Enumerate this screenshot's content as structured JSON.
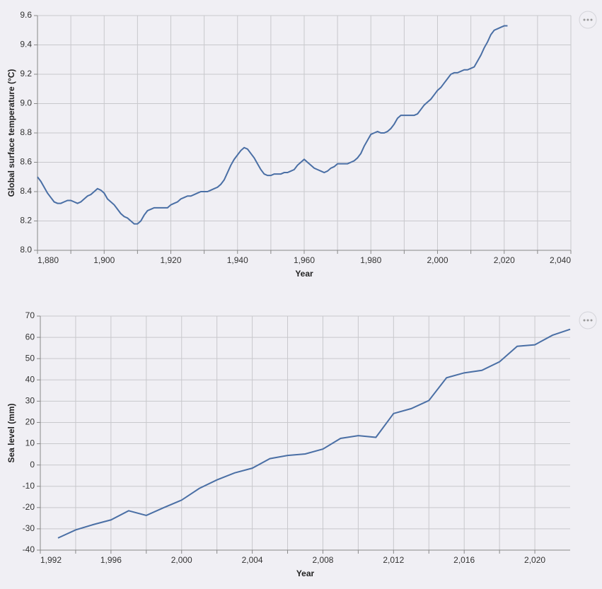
{
  "chart_data": [
    {
      "type": "line",
      "x_label": "Year",
      "y_label": "Global surface temperature (°C)",
      "color": "#4a6fa5",
      "grid": true,
      "xlim": [
        1880,
        2040
      ],
      "xticks": [
        {
          "value": 1880,
          "label": "1,880"
        },
        {
          "value": 1900,
          "label": "1,900"
        },
        {
          "value": 1920,
          "label": "1,920"
        },
        {
          "value": 1940,
          "label": "1,940"
        },
        {
          "value": 1960,
          "label": "1,960"
        },
        {
          "value": 1980,
          "label": "1,980"
        },
        {
          "value": 2000,
          "label": "2,000"
        },
        {
          "value": 2020,
          "label": "2,020"
        },
        {
          "value": 2040,
          "label": "2,040"
        }
      ],
      "ylim": [
        8.0,
        9.6
      ],
      "yticks": [
        {
          "value": 8,
          "label": "8.0"
        },
        8.2,
        8.4,
        8.6,
        8.8,
        {
          "value": 9,
          "label": "9.0"
        },
        9.2,
        9.4,
        9.6
      ],
      "x": [
        1880,
        1881,
        1882,
        1883,
        1884,
        1885,
        1886,
        1887,
        1888,
        1889,
        1890,
        1891,
        1892,
        1893,
        1894,
        1895,
        1896,
        1897,
        1898,
        1899,
        1900,
        1901,
        1902,
        1903,
        1904,
        1905,
        1906,
        1907,
        1908,
        1909,
        1910,
        1911,
        1912,
        1913,
        1914,
        1915,
        1916,
        1917,
        1918,
        1919,
        1920,
        1921,
        1922,
        1923,
        1924,
        1925,
        1926,
        1927,
        1928,
        1929,
        1930,
        1931,
        1932,
        1933,
        1934,
        1935,
        1936,
        1937,
        1938,
        1939,
        1940,
        1941,
        1942,
        1943,
        1944,
        1945,
        1946,
        1947,
        1948,
        1949,
        1950,
        1951,
        1952,
        1953,
        1954,
        1955,
        1956,
        1957,
        1958,
        1959,
        1960,
        1961,
        1962,
        1963,
        1964,
        1965,
        1966,
        1967,
        1968,
        1969,
        1970,
        1971,
        1972,
        1973,
        1974,
        1975,
        1976,
        1977,
        1978,
        1979,
        1980,
        1981,
        1982,
        1983,
        1984,
        1985,
        1986,
        1987,
        1988,
        1989,
        1990,
        1991,
        1992,
        1993,
        1994,
        1995,
        1996,
        1997,
        1998,
        1999,
        2000,
        2001,
        2002,
        2003,
        2004,
        2005,
        2006,
        2007,
        2008,
        2009,
        2010,
        2011,
        2012,
        2013,
        2014,
        2015,
        2016,
        2017,
        2018,
        2019,
        2020,
        2021
      ],
      "values": [
        8.5,
        8.47,
        8.43,
        8.39,
        8.36,
        8.33,
        8.32,
        8.32,
        8.33,
        8.34,
        8.34,
        8.33,
        8.32,
        8.33,
        8.35,
        8.37,
        8.38,
        8.4,
        8.42,
        8.41,
        8.39,
        8.35,
        8.33,
        8.31,
        8.28,
        8.25,
        8.23,
        8.22,
        8.2,
        8.18,
        8.18,
        8.2,
        8.24,
        8.27,
        8.28,
        8.29,
        8.29,
        8.29,
        8.29,
        8.29,
        8.31,
        8.32,
        8.33,
        8.35,
        8.36,
        8.37,
        8.37,
        8.38,
        8.39,
        8.4,
        8.4,
        8.4,
        8.41,
        8.42,
        8.43,
        8.45,
        8.48,
        8.53,
        8.58,
        8.62,
        8.65,
        8.68,
        8.7,
        8.69,
        8.66,
        8.63,
        8.59,
        8.55,
        8.52,
        8.51,
        8.51,
        8.52,
        8.52,
        8.52,
        8.53,
        8.53,
        8.54,
        8.55,
        8.58,
        8.6,
        8.62,
        8.6,
        8.58,
        8.56,
        8.55,
        8.54,
        8.53,
        8.54,
        8.56,
        8.57,
        8.59,
        8.59,
        8.59,
        8.59,
        8.6,
        8.61,
        8.63,
        8.66,
        8.71,
        8.75,
        8.79,
        8.8,
        8.81,
        8.8,
        8.8,
        8.81,
        8.83,
        8.86,
        8.9,
        8.92,
        8.92,
        8.92,
        8.92,
        8.92,
        8.93,
        8.96,
        8.99,
        9.01,
        9.03,
        9.06,
        9.09,
        9.11,
        9.14,
        9.17,
        9.2,
        9.21,
        9.21,
        9.22,
        9.23,
        9.23,
        9.24,
        9.25,
        9.29,
        9.33,
        9.38,
        9.42,
        9.47,
        9.5,
        9.51,
        9.52,
        9.53,
        9.53
      ]
    },
    {
      "type": "line",
      "x_label": "Year",
      "y_label": "Sea level (mm)",
      "color": "#4a6fa5",
      "grid": true,
      "xlim": [
        1992,
        2022
      ],
      "xticks": [
        {
          "value": 1992,
          "label": "1,992"
        },
        {
          "value": 1996,
          "label": "1,996"
        },
        {
          "value": 2000,
          "label": "2,000"
        },
        {
          "value": 2004,
          "label": "2,004"
        },
        {
          "value": 2008,
          "label": "2,008"
        },
        {
          "value": 2012,
          "label": "2,012"
        },
        {
          "value": 2016,
          "label": "2,016"
        },
        {
          "value": 2020,
          "label": "2,020"
        }
      ],
      "ylim": [
        -40,
        70
      ],
      "yticks": [
        -40,
        -30,
        -20,
        -10,
        0,
        10,
        20,
        30,
        40,
        50,
        60,
        70
      ],
      "x": [
        1993,
        1994,
        1995,
        1996,
        1997,
        1998,
        1999,
        2000,
        2001,
        2002,
        2003,
        2004,
        2005,
        2006,
        2007,
        2008,
        2009,
        2010,
        2011,
        2012,
        2013,
        2014,
        2015,
        2016,
        2017,
        2018,
        2019,
        2020,
        2021,
        2022
      ],
      "values": [
        -34.3,
        -30.5,
        -28,
        -25.8,
        -21.5,
        -23.7,
        -20,
        -16.5,
        -11,
        -7,
        -3.7,
        -1.5,
        3,
        4.5,
        5.2,
        7.5,
        12.5,
        13.8,
        13,
        24.2,
        26.5,
        30.3,
        41,
        43.3,
        44.5,
        48.5,
        55.8,
        56.5,
        61,
        63.8
      ]
    }
  ]
}
